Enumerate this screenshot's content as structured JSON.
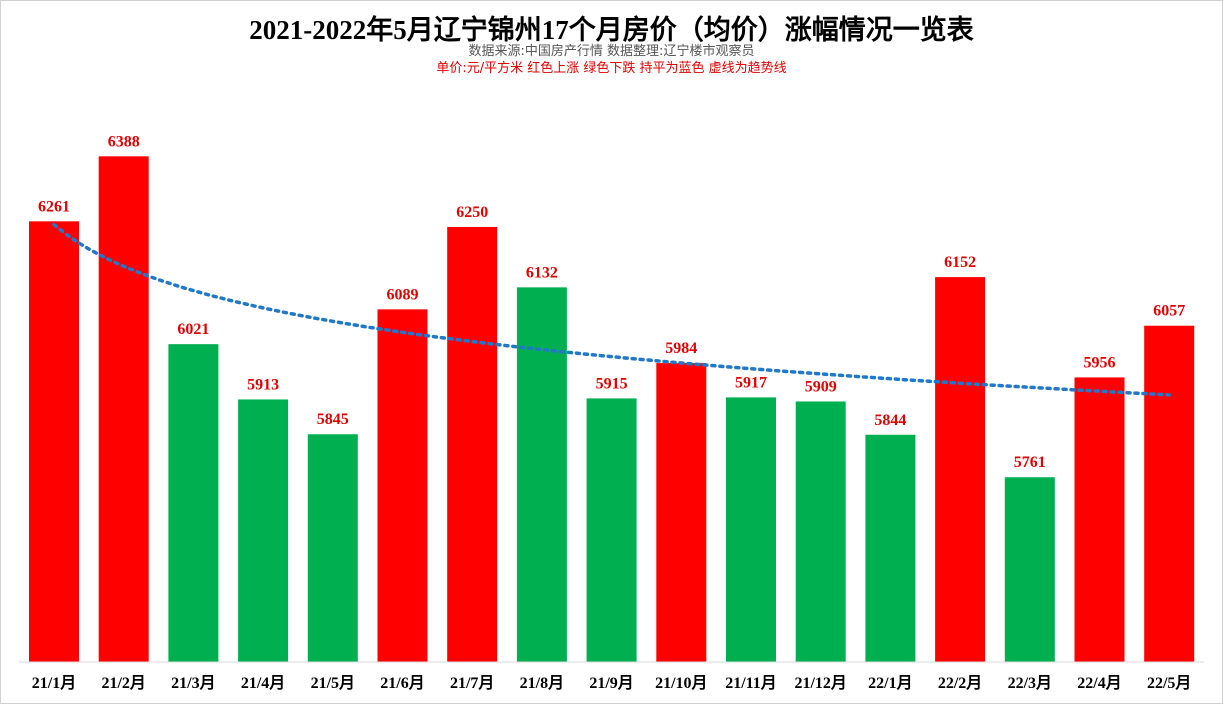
{
  "chart_data": {
    "type": "bar",
    "title": "2021-2022年5月辽宁锦州17个月房价（均价）涨幅情况一览表",
    "subtitle": "数据来源:中国房产行情    数据整理:辽宁楼市观察员",
    "note": "单价:元/平方米  红色上涨  绿色下跌   持平为蓝色     虚线为趋势线",
    "categories": [
      "21/1月",
      "21/2月",
      "21/3月",
      "21/4月",
      "21/5月",
      "21/6月",
      "21/7月",
      "21/8月",
      "21/9月",
      "21/10月",
      "21/11月",
      "21/12月",
      "22/1月",
      "22/2月",
      "22/3月",
      "22/4月",
      "22/5月"
    ],
    "values": [
      6261,
      6388,
      6021,
      5913,
      5845,
      6089,
      6250,
      6132,
      5915,
      5984,
      5917,
      5909,
      5844,
      6152,
      5761,
      5956,
      6057
    ],
    "bar_colors": [
      "up",
      "up",
      "down",
      "down",
      "down",
      "up",
      "up",
      "down",
      "down",
      "up",
      "down",
      "down",
      "down",
      "up",
      "down",
      "up",
      "up"
    ],
    "colors": {
      "up": "#ff0000",
      "down": "#00b050",
      "flat": "#0070c0",
      "trend": "#1f78c8",
      "label": "#e00000"
    },
    "trendline": {
      "type": "logarithmic",
      "style": "dotted"
    },
    "ylim": [
      5400,
      6500
    ],
    "grid": false,
    "legend": "none"
  }
}
